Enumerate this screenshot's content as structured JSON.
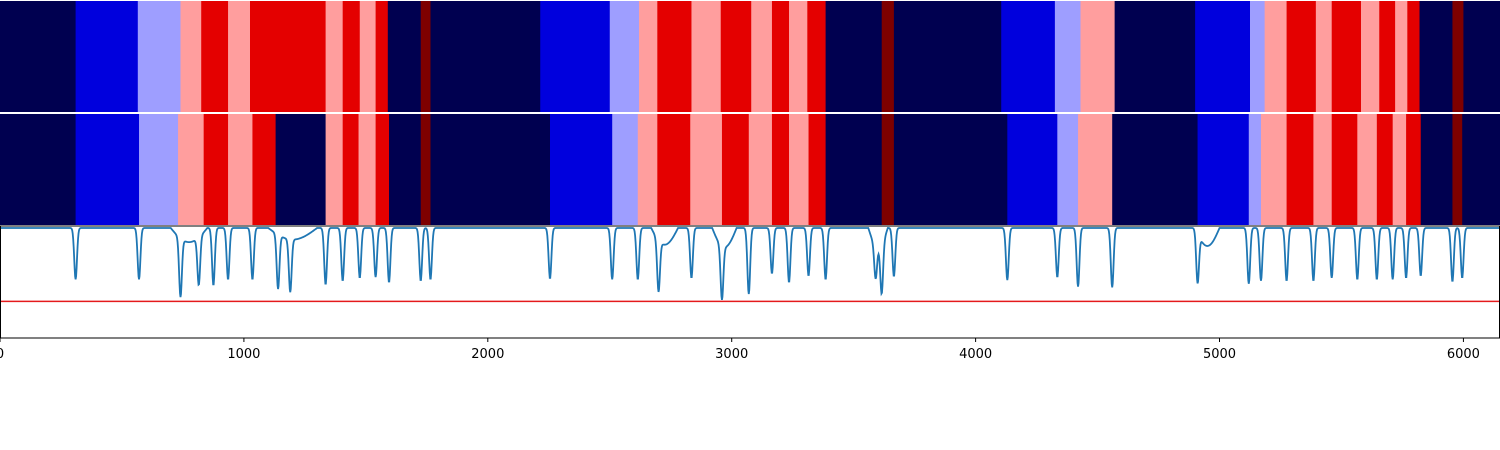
{
  "colors": {
    "dark_navy": "#000050",
    "blue": "#0000dd",
    "light_blue": "#9e9eff",
    "pink": "#ff9e9e",
    "red": "#e40000",
    "dark_red": "#7e0000",
    "signal_line": "#1f77b4",
    "threshold_line": "#e41a1c",
    "separator": "#ffffff",
    "axes": "#000000"
  },
  "chart_data": {
    "type": "heatmap",
    "xlim": [
      0,
      6150
    ],
    "x_ticks": [
      0,
      1000,
      2000,
      3000,
      4000,
      5000,
      6000
    ],
    "x_tick_labels": [
      "0",
      "1000",
      "2000",
      "3000",
      "4000",
      "5000",
      "6000"
    ],
    "segmentations": [
      {
        "segments": [
          {
            "start": 0,
            "end": 310,
            "state": "dark_navy"
          },
          {
            "start": 310,
            "end": 565,
            "state": "blue"
          },
          {
            "start": 565,
            "end": 740,
            "state": "light_blue"
          },
          {
            "start": 740,
            "end": 825,
            "state": "pink"
          },
          {
            "start": 825,
            "end": 935,
            "state": "red"
          },
          {
            "start": 935,
            "end": 1025,
            "state": "pink"
          },
          {
            "start": 1025,
            "end": 1335,
            "state": "red"
          },
          {
            "start": 1335,
            "end": 1405,
            "state": "pink"
          },
          {
            "start": 1405,
            "end": 1475,
            "state": "red"
          },
          {
            "start": 1475,
            "end": 1540,
            "state": "pink"
          },
          {
            "start": 1540,
            "end": 1590,
            "state": "red"
          },
          {
            "start": 1590,
            "end": 1725,
            "state": "dark_navy"
          },
          {
            "start": 1725,
            "end": 1765,
            "state": "dark_red"
          },
          {
            "start": 1765,
            "end": 2215,
            "state": "dark_navy"
          },
          {
            "start": 2215,
            "end": 2500,
            "state": "blue"
          },
          {
            "start": 2500,
            "end": 2620,
            "state": "light_blue"
          },
          {
            "start": 2620,
            "end": 2695,
            "state": "pink"
          },
          {
            "start": 2695,
            "end": 2835,
            "state": "red"
          },
          {
            "start": 2835,
            "end": 2955,
            "state": "pink"
          },
          {
            "start": 2955,
            "end": 3080,
            "state": "red"
          },
          {
            "start": 3080,
            "end": 3165,
            "state": "pink"
          },
          {
            "start": 3165,
            "end": 3235,
            "state": "red"
          },
          {
            "start": 3235,
            "end": 3310,
            "state": "pink"
          },
          {
            "start": 3310,
            "end": 3385,
            "state": "red"
          },
          {
            "start": 3385,
            "end": 3615,
            "state": "dark_navy"
          },
          {
            "start": 3615,
            "end": 3665,
            "state": "dark_red"
          },
          {
            "start": 3665,
            "end": 4105,
            "state": "dark_navy"
          },
          {
            "start": 4105,
            "end": 4325,
            "state": "blue"
          },
          {
            "start": 4325,
            "end": 4430,
            "state": "light_blue"
          },
          {
            "start": 4430,
            "end": 4570,
            "state": "pink"
          },
          {
            "start": 4570,
            "end": 4900,
            "state": "dark_navy"
          },
          {
            "start": 4900,
            "end": 5125,
            "state": "blue"
          },
          {
            "start": 5125,
            "end": 5185,
            "state": "light_blue"
          },
          {
            "start": 5185,
            "end": 5275,
            "state": "pink"
          },
          {
            "start": 5275,
            "end": 5395,
            "state": "red"
          },
          {
            "start": 5395,
            "end": 5460,
            "state": "pink"
          },
          {
            "start": 5460,
            "end": 5580,
            "state": "red"
          },
          {
            "start": 5580,
            "end": 5655,
            "state": "pink"
          },
          {
            "start": 5655,
            "end": 5720,
            "state": "red"
          },
          {
            "start": 5720,
            "end": 5770,
            "state": "pink"
          },
          {
            "start": 5770,
            "end": 5820,
            "state": "red"
          },
          {
            "start": 5820,
            "end": 5955,
            "state": "dark_navy"
          },
          {
            "start": 5955,
            "end": 6000,
            "state": "dark_red"
          },
          {
            "start": 6000,
            "end": 6150,
            "state": "dark_navy"
          }
        ]
      },
      {
        "segments": [
          {
            "start": 0,
            "end": 310,
            "state": "dark_navy"
          },
          {
            "start": 310,
            "end": 570,
            "state": "blue"
          },
          {
            "start": 570,
            "end": 730,
            "state": "light_blue"
          },
          {
            "start": 730,
            "end": 835,
            "state": "pink"
          },
          {
            "start": 835,
            "end": 935,
            "state": "red"
          },
          {
            "start": 935,
            "end": 1035,
            "state": "pink"
          },
          {
            "start": 1035,
            "end": 1130,
            "state": "red"
          },
          {
            "start": 1130,
            "end": 1335,
            "state": "dark_navy"
          },
          {
            "start": 1335,
            "end": 1405,
            "state": "pink"
          },
          {
            "start": 1405,
            "end": 1470,
            "state": "red"
          },
          {
            "start": 1470,
            "end": 1540,
            "state": "pink"
          },
          {
            "start": 1540,
            "end": 1595,
            "state": "red"
          },
          {
            "start": 1595,
            "end": 1725,
            "state": "dark_navy"
          },
          {
            "start": 1725,
            "end": 1765,
            "state": "dark_red"
          },
          {
            "start": 1765,
            "end": 2255,
            "state": "dark_navy"
          },
          {
            "start": 2255,
            "end": 2510,
            "state": "blue"
          },
          {
            "start": 2510,
            "end": 2615,
            "state": "light_blue"
          },
          {
            "start": 2615,
            "end": 2695,
            "state": "pink"
          },
          {
            "start": 2695,
            "end": 2830,
            "state": "red"
          },
          {
            "start": 2830,
            "end": 2960,
            "state": "pink"
          },
          {
            "start": 2960,
            "end": 3070,
            "state": "red"
          },
          {
            "start": 3070,
            "end": 3165,
            "state": "pink"
          },
          {
            "start": 3165,
            "end": 3235,
            "state": "red"
          },
          {
            "start": 3235,
            "end": 3315,
            "state": "pink"
          },
          {
            "start": 3315,
            "end": 3385,
            "state": "red"
          },
          {
            "start": 3385,
            "end": 3615,
            "state": "dark_navy"
          },
          {
            "start": 3615,
            "end": 3665,
            "state": "dark_red"
          },
          {
            "start": 3665,
            "end": 4130,
            "state": "dark_navy"
          },
          {
            "start": 4130,
            "end": 4335,
            "state": "blue"
          },
          {
            "start": 4335,
            "end": 4420,
            "state": "light_blue"
          },
          {
            "start": 4420,
            "end": 4560,
            "state": "pink"
          },
          {
            "start": 4560,
            "end": 4910,
            "state": "dark_navy"
          },
          {
            "start": 4910,
            "end": 5120,
            "state": "blue"
          },
          {
            "start": 5120,
            "end": 5170,
            "state": "light_blue"
          },
          {
            "start": 5170,
            "end": 5275,
            "state": "pink"
          },
          {
            "start": 5275,
            "end": 5385,
            "state": "red"
          },
          {
            "start": 5385,
            "end": 5460,
            "state": "pink"
          },
          {
            "start": 5460,
            "end": 5565,
            "state": "red"
          },
          {
            "start": 5565,
            "end": 5645,
            "state": "pink"
          },
          {
            "start": 5645,
            "end": 5710,
            "state": "red"
          },
          {
            "start": 5710,
            "end": 5765,
            "state": "pink"
          },
          {
            "start": 5765,
            "end": 5825,
            "state": "red"
          },
          {
            "start": 5825,
            "end": 5955,
            "state": "dark_navy"
          },
          {
            "start": 5955,
            "end": 5995,
            "state": "dark_red"
          },
          {
            "start": 5995,
            "end": 6150,
            "state": "dark_navy"
          }
        ]
      }
    ],
    "signal": {
      "baseline": 1.0,
      "threshold": 0.0,
      "ylim": [
        -0.5,
        1.0
      ],
      "dips": [
        [
          310,
          0.3
        ],
        [
          570,
          0.3
        ],
        [
          740,
          0.2
        ],
        [
          815,
          0.35
        ],
        [
          875,
          0.22
        ],
        [
          935,
          0.3
        ],
        [
          1035,
          0.3
        ],
        [
          1140,
          0.26
        ],
        [
          1190,
          0.28
        ],
        [
          1335,
          0.23
        ],
        [
          1405,
          0.28
        ],
        [
          1475,
          0.32
        ],
        [
          1540,
          0.33
        ],
        [
          1595,
          0.26
        ],
        [
          1725,
          0.28
        ],
        [
          1765,
          0.3
        ],
        [
          2255,
          0.31
        ],
        [
          2510,
          0.3
        ],
        [
          2615,
          0.3
        ],
        [
          2700,
          0.3
        ],
        [
          2835,
          0.32
        ],
        [
          2960,
          0.27
        ],
        [
          3070,
          0.1
        ],
        [
          3165,
          0.38
        ],
        [
          3235,
          0.26
        ],
        [
          3315,
          0.35
        ],
        [
          3385,
          0.3
        ],
        [
          3590,
          0.55
        ],
        [
          3615,
          0.32
        ],
        [
          3665,
          0.34
        ],
        [
          4130,
          0.29
        ],
        [
          4335,
          0.33
        ],
        [
          4420,
          0.2
        ],
        [
          4560,
          0.19
        ],
        [
          4910,
          0.32
        ],
        [
          5120,
          0.24
        ],
        [
          5170,
          0.28
        ],
        [
          5275,
          0.28
        ],
        [
          5385,
          0.28
        ],
        [
          5460,
          0.32
        ],
        [
          5565,
          0.3
        ],
        [
          5645,
          0.3
        ],
        [
          5710,
          0.3
        ],
        [
          5765,
          0.32
        ],
        [
          5825,
          0.35
        ],
        [
          5955,
          0.27
        ],
        [
          5995,
          0.32
        ]
      ],
      "broad_bumps": [
        [
          700,
          850,
          0.45
        ],
        [
          1100,
          1300,
          0.55
        ],
        [
          2670,
          2780,
          0.35
        ],
        [
          2920,
          3020,
          0.25
        ],
        [
          3560,
          3640,
          0.25
        ],
        [
          4900,
          5000,
          0.3
        ]
      ]
    }
  }
}
